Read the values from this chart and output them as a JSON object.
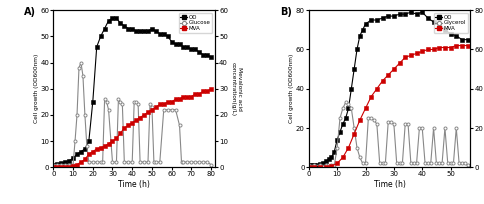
{
  "panel_A": {
    "label": "A)",
    "xlabel": "Time (h)",
    "ylabel_left": "Cell growth (OD600nm)",
    "ylabel_right": "Mevalonic acid\nconcentration(g/L)",
    "xlim": [
      0,
      82
    ],
    "ylim_left": [
      0,
      60
    ],
    "ylim_right": [
      0,
      60
    ],
    "xticks": [
      0,
      10,
      20,
      30,
      40,
      50,
      60,
      70,
      80
    ],
    "yticks_left": [
      0,
      10,
      20,
      30,
      40,
      50,
      60
    ],
    "yticks_right": [
      0,
      10,
      20,
      30,
      40,
      50,
      60
    ],
    "OD_x": [
      0,
      2,
      4,
      6,
      8,
      10,
      12,
      14,
      16,
      18,
      20,
      22,
      24,
      26,
      28,
      30,
      32,
      34,
      36,
      38,
      40,
      42,
      44,
      46,
      48,
      50,
      52,
      54,
      56,
      58,
      60,
      62,
      64,
      66,
      68,
      70,
      72,
      74,
      76,
      78,
      80
    ],
    "OD_y": [
      1,
      1.2,
      1.5,
      2,
      2.5,
      3.5,
      5,
      6,
      7,
      10,
      25,
      46,
      50,
      53,
      56,
      57,
      57,
      55,
      54,
      53,
      53,
      52,
      52,
      52,
      52,
      53,
      52,
      51,
      51,
      50,
      48,
      47,
      47,
      46,
      46,
      45,
      45,
      44,
      43,
      43,
      42
    ],
    "Glucose_x": [
      0,
      2,
      4,
      6,
      8,
      10,
      11,
      12,
      13,
      14,
      15,
      16,
      17,
      18,
      20,
      22,
      24,
      25,
      26,
      27,
      28,
      30,
      32,
      33,
      34,
      35,
      36,
      38,
      40,
      41,
      42,
      43,
      44,
      46,
      48,
      49,
      50,
      51,
      52,
      54,
      56,
      58,
      60,
      62,
      64,
      65,
      66,
      68,
      70,
      72,
      74,
      76,
      78,
      80
    ],
    "Glucose_y": [
      1,
      1,
      1,
      1,
      1,
      1,
      10,
      20,
      38,
      40,
      35,
      20,
      8,
      2,
      2,
      2,
      2,
      2,
      26,
      25,
      22,
      2,
      2,
      26,
      25,
      24,
      2,
      2,
      2,
      25,
      25,
      24,
      2,
      2,
      2,
      24,
      23,
      2,
      2,
      2,
      22,
      22,
      22,
      22,
      16,
      2,
      2,
      2,
      2,
      2,
      2,
      2,
      2,
      1
    ],
    "MVA_x": [
      0,
      2,
      4,
      6,
      8,
      10,
      12,
      14,
      16,
      18,
      20,
      22,
      24,
      26,
      28,
      30,
      32,
      34,
      36,
      38,
      40,
      42,
      44,
      46,
      48,
      50,
      52,
      54,
      56,
      58,
      60,
      62,
      64,
      66,
      68,
      70,
      72,
      74,
      76,
      78,
      80
    ],
    "MVA_y": [
      0,
      0,
      0,
      0,
      0.2,
      0.5,
      1,
      2,
      3,
      5,
      6,
      7,
      7.5,
      8,
      9,
      10,
      11,
      13,
      15,
      16,
      17,
      18,
      19,
      20,
      21,
      22,
      23,
      24,
      24,
      25,
      25,
      26,
      26,
      27,
      27,
      27,
      28,
      28,
      29,
      29,
      30
    ],
    "legend": [
      "OD",
      "Glucose",
      "MVA"
    ]
  },
  "panel_B": {
    "label": "B)",
    "xlabel": "Time (h)",
    "ylabel_left": "Cell growth (OD600nm)",
    "ylabel_right": "Mevalonic acid\nconcentration(g/L)",
    "xlim": [
      0,
      57
    ],
    "ylim_left": [
      0,
      80
    ],
    "ylim_right": [
      0,
      80
    ],
    "xticks": [
      0,
      10,
      20,
      30,
      40,
      50
    ],
    "yticks_left": [
      0,
      20,
      40,
      60,
      80
    ],
    "yticks_right": [
      0,
      20,
      40,
      60,
      80
    ],
    "OD_x": [
      0,
      1,
      2,
      3,
      4,
      5,
      6,
      7,
      8,
      9,
      10,
      11,
      12,
      13,
      14,
      15,
      16,
      17,
      18,
      19,
      20,
      22,
      24,
      26,
      28,
      30,
      32,
      34,
      36,
      38,
      40,
      42,
      44,
      46,
      48,
      50,
      52,
      54,
      56
    ],
    "OD_y": [
      1,
      1,
      1,
      1.2,
      1.5,
      2,
      3,
      4,
      5,
      8,
      14,
      18,
      22,
      25,
      30,
      40,
      50,
      60,
      67,
      70,
      73,
      75,
      75,
      76,
      77,
      77,
      78,
      78,
      79,
      78,
      79,
      76,
      74,
      73,
      70,
      68,
      67,
      65,
      65
    ],
    "Glycerol_x": [
      0,
      2,
      4,
      6,
      8,
      9,
      10,
      11,
      12,
      13,
      14,
      15,
      16,
      17,
      18,
      19,
      20,
      21,
      22,
      23,
      24,
      25,
      26,
      27,
      28,
      29,
      30,
      31,
      32,
      33,
      34,
      35,
      36,
      37,
      38,
      39,
      40,
      41,
      42,
      43,
      44,
      45,
      46,
      47,
      48,
      49,
      50,
      51,
      52,
      53,
      54,
      55,
      56
    ],
    "Glycerol_y": [
      1,
      1,
      1,
      1,
      1,
      1,
      10,
      25,
      30,
      33,
      32,
      30,
      20,
      10,
      5,
      2,
      2,
      25,
      25,
      24,
      22,
      2,
      2,
      2,
      23,
      23,
      22,
      2,
      2,
      2,
      22,
      22,
      2,
      2,
      2,
      20,
      20,
      2,
      2,
      2,
      20,
      2,
      2,
      2,
      20,
      2,
      2,
      2,
      20,
      2,
      2,
      2,
      1
    ],
    "MVA_x": [
      0,
      2,
      4,
      6,
      8,
      10,
      12,
      14,
      16,
      18,
      20,
      22,
      24,
      26,
      28,
      30,
      32,
      34,
      36,
      38,
      40,
      42,
      44,
      46,
      48,
      50,
      52,
      54,
      56
    ],
    "MVA_y": [
      0,
      0,
      0,
      0,
      0.5,
      2,
      5,
      10,
      17,
      24,
      30,
      36,
      40,
      44,
      47,
      50,
      53,
      56,
      57,
      58,
      59,
      60,
      60,
      61,
      61,
      61,
      62,
      62,
      62
    ],
    "legend": [
      "OD",
      "Glycerol",
      "MVA"
    ]
  },
  "colors": {
    "OD": "#000000",
    "substrate": "#888888",
    "MVA": "#cc0000"
  }
}
